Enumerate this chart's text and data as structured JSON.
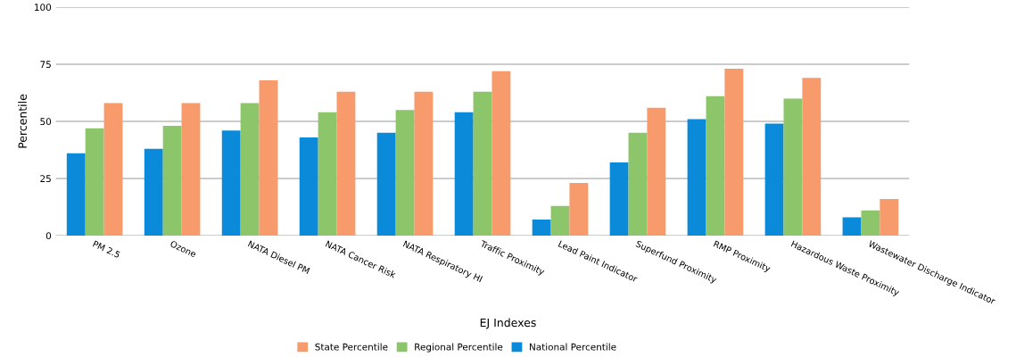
{
  "chart_data": {
    "type": "bar",
    "xlabel": "EJ Indexes",
    "ylabel": "Percentile",
    "categories": [
      "PM 2.5",
      "Ozone",
      "NATA Diesel PM",
      "NATA Cancer Risk",
      "NATA Respiratory HI",
      "Traffic Proximity",
      "Lead Paint Indicator",
      "Superfund Proximity",
      "RMP Proximity",
      "Hazardous Waste Proximity",
      "Wastewater Discharge Indicator"
    ],
    "series": [
      {
        "name": "National Percentile",
        "color": "#0a8ad8",
        "values": [
          36,
          38,
          46,
          43,
          45,
          54,
          7,
          32,
          51,
          49,
          8
        ]
      },
      {
        "name": "Regional Percentile",
        "color": "#8cc56a",
        "values": [
          47,
          48,
          58,
          54,
          55,
          63,
          13,
          45,
          61,
          60,
          11
        ]
      },
      {
        "name": "State Percentile",
        "color": "#f79a6c",
        "values": [
          58,
          58,
          68,
          63,
          63,
          72,
          23,
          56,
          73,
          69,
          16
        ]
      }
    ],
    "ylim": [
      0,
      100
    ],
    "yticks": [
      0,
      25,
      50,
      75,
      100
    ],
    "grid": "y",
    "legend": "bottom"
  }
}
